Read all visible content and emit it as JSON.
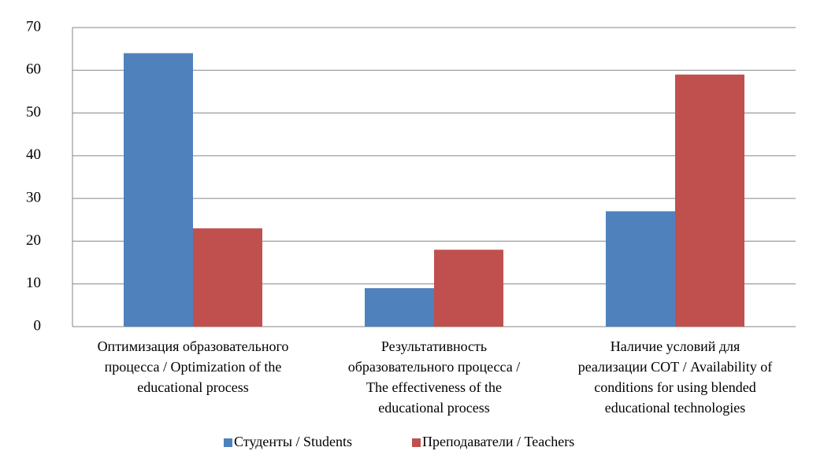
{
  "chart_data": {
    "type": "bar",
    "categories": [
      [
        "Оптимизация образовательного",
        "процесса / Optimization of the",
        "educational process"
      ],
      [
        "Результативность",
        "образовательного процесса /",
        "The effectiveness of the",
        "educational process"
      ],
      [
        "Наличие условий для",
        "реализации СОТ / Availability of",
        "conditions for using blended",
        "educational technologies"
      ]
    ],
    "series": [
      {
        "name": "Студенты / Students",
        "color": "#4f81bd",
        "values": [
          64,
          9,
          27
        ]
      },
      {
        "name": "Преподаватели / Teachers",
        "color": "#c0504d",
        "values": [
          23,
          18,
          59
        ]
      }
    ],
    "ylim": [
      0,
      70
    ],
    "yticks": [
      0,
      10,
      20,
      30,
      40,
      50,
      60,
      70
    ],
    "grid": true,
    "legend": "bottom"
  }
}
